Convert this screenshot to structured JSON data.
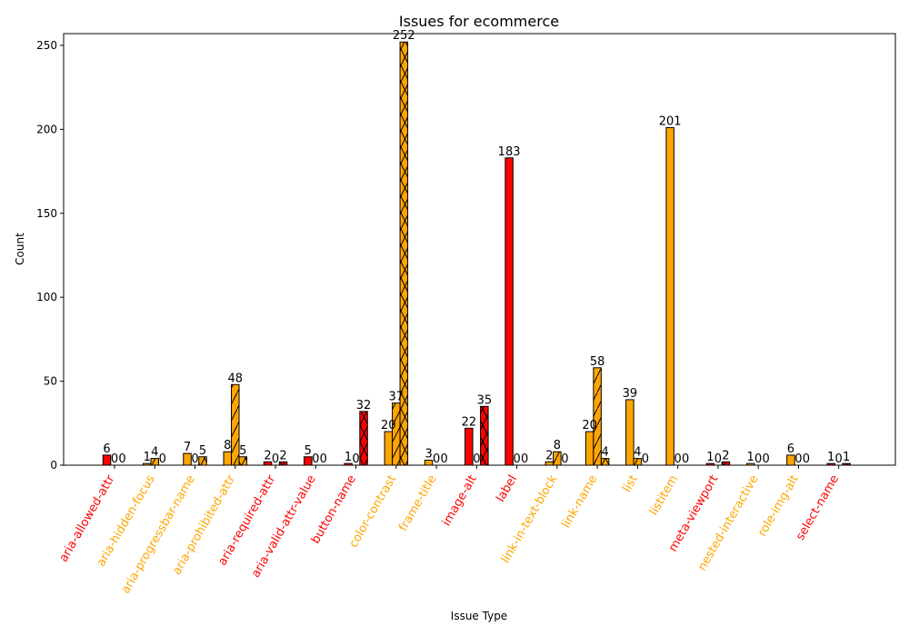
{
  "chart_data": {
    "type": "bar",
    "title": "Issues for ecommerce",
    "xlabel": "Issue Type",
    "ylabel": "Count",
    "ylim": [
      0,
      257
    ],
    "yticks": [
      0,
      50,
      100,
      150,
      200,
      250
    ],
    "grid": false,
    "categories": [
      {
        "label": "aria-allowed-attr",
        "color": "#ff0000",
        "values": [
          6,
          0,
          0
        ]
      },
      {
        "label": "aria-hidden-focus",
        "color": "#ffa500",
        "values": [
          1,
          4,
          0
        ]
      },
      {
        "label": "aria-progressbar-name",
        "color": "#ffa500",
        "values": [
          7,
          0,
          5
        ]
      },
      {
        "label": "aria-prohibited-attr",
        "color": "#ffa500",
        "values": [
          8,
          48,
          5
        ]
      },
      {
        "label": "aria-required-attr",
        "color": "#ff0000",
        "values": [
          2,
          0,
          2
        ]
      },
      {
        "label": "aria-valid-attr-value",
        "color": "#ff0000",
        "values": [
          5,
          0,
          0
        ]
      },
      {
        "label": "button-name",
        "color": "#ff0000",
        "values": [
          1,
          0,
          32
        ]
      },
      {
        "label": "color-contrast",
        "color": "#ffa500",
        "values": [
          20,
          37,
          252
        ]
      },
      {
        "label": "frame-title",
        "color": "#ffa500",
        "values": [
          3,
          0,
          0
        ]
      },
      {
        "label": "image-alt",
        "color": "#ff0000",
        "values": [
          22,
          0,
          35
        ]
      },
      {
        "label": "label",
        "color": "#ff0000",
        "values": [
          183,
          0,
          0
        ]
      },
      {
        "label": "link-in-text-block",
        "color": "#ffa500",
        "values": [
          2,
          8,
          0
        ]
      },
      {
        "label": "link-name",
        "color": "#ffa500",
        "values": [
          20,
          58,
          4
        ]
      },
      {
        "label": "list",
        "color": "#ffa500",
        "values": [
          39,
          4,
          0
        ]
      },
      {
        "label": "listitem",
        "color": "#ffa500",
        "values": [
          201,
          0,
          0
        ]
      },
      {
        "label": "meta-viewport",
        "color": "#ff0000",
        "values": [
          1,
          0,
          2
        ]
      },
      {
        "label": "nested-interactive",
        "color": "#ffa500",
        "values": [
          1,
          0,
          0
        ]
      },
      {
        "label": "role-img-alt",
        "color": "#ffa500",
        "values": [
          6,
          0,
          0
        ]
      },
      {
        "label": "select-name",
        "color": "#ff0000",
        "values": [
          1,
          0,
          1
        ]
      }
    ]
  }
}
